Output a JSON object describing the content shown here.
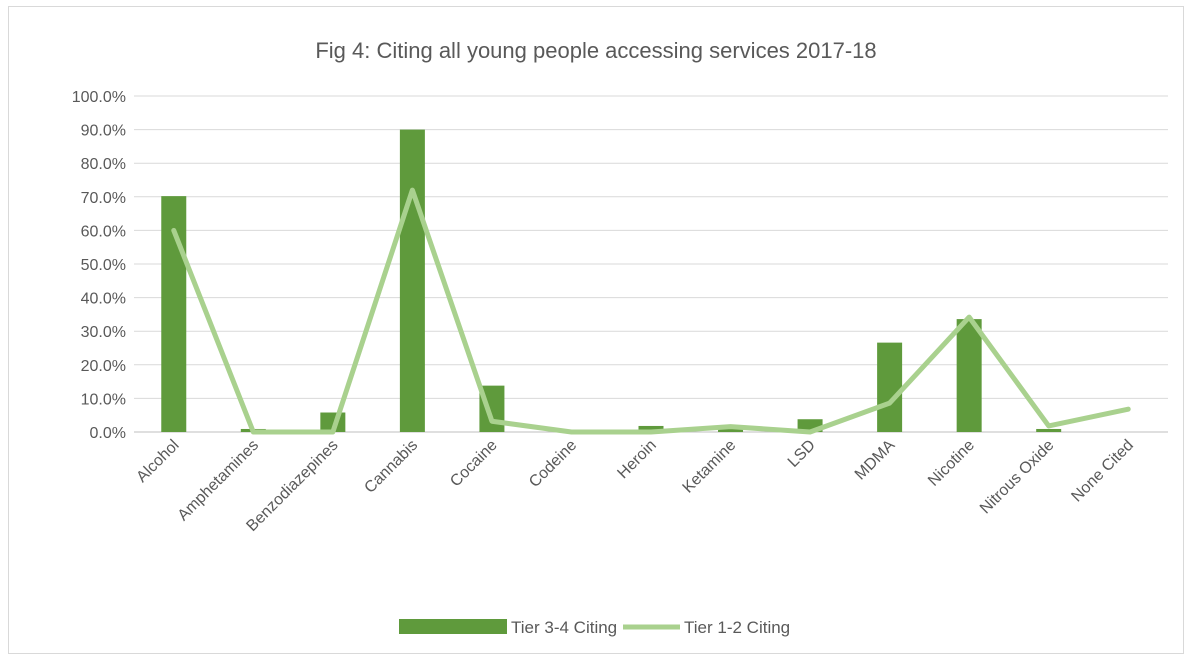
{
  "chart_data": {
    "type": "bar",
    "title": "Fig 4: Citing all young people accessing services 2017-18",
    "categories": [
      "Alcohol",
      "Amphetamines",
      "Benzodiazepines",
      "Cannabis",
      "Cocaine",
      "Codeine",
      "Heroin",
      "Ketamine",
      "LSD",
      "MDMA",
      "Nicotine",
      "Nitrous Oxide",
      "None Cited"
    ],
    "series": [
      {
        "name": "Tier 3-4 Citing",
        "type": "bar",
        "color": "#5f9a3c",
        "values": [
          70.2,
          0.9,
          5.8,
          90.0,
          13.8,
          0.6,
          1.8,
          1.3,
          3.8,
          26.6,
          33.6,
          0.9,
          0.0
        ]
      },
      {
        "name": "Tier 1-2 Citing",
        "type": "line",
        "color": "#a9d18e",
        "values": [
          60.0,
          0.0,
          0.0,
          72.0,
          3.2,
          0.0,
          0.0,
          1.6,
          0.0,
          8.6,
          34.2,
          1.8,
          6.8
        ]
      }
    ],
    "ylim": [
      0,
      100
    ],
    "yticks": [
      "0.0%",
      "10.0%",
      "20.0%",
      "30.0%",
      "40.0%",
      "50.0%",
      "60.0%",
      "70.0%",
      "80.0%",
      "90.0%",
      "100.0%"
    ],
    "xlabel": "",
    "ylabel": "",
    "grid": true,
    "legend": "bottom"
  }
}
